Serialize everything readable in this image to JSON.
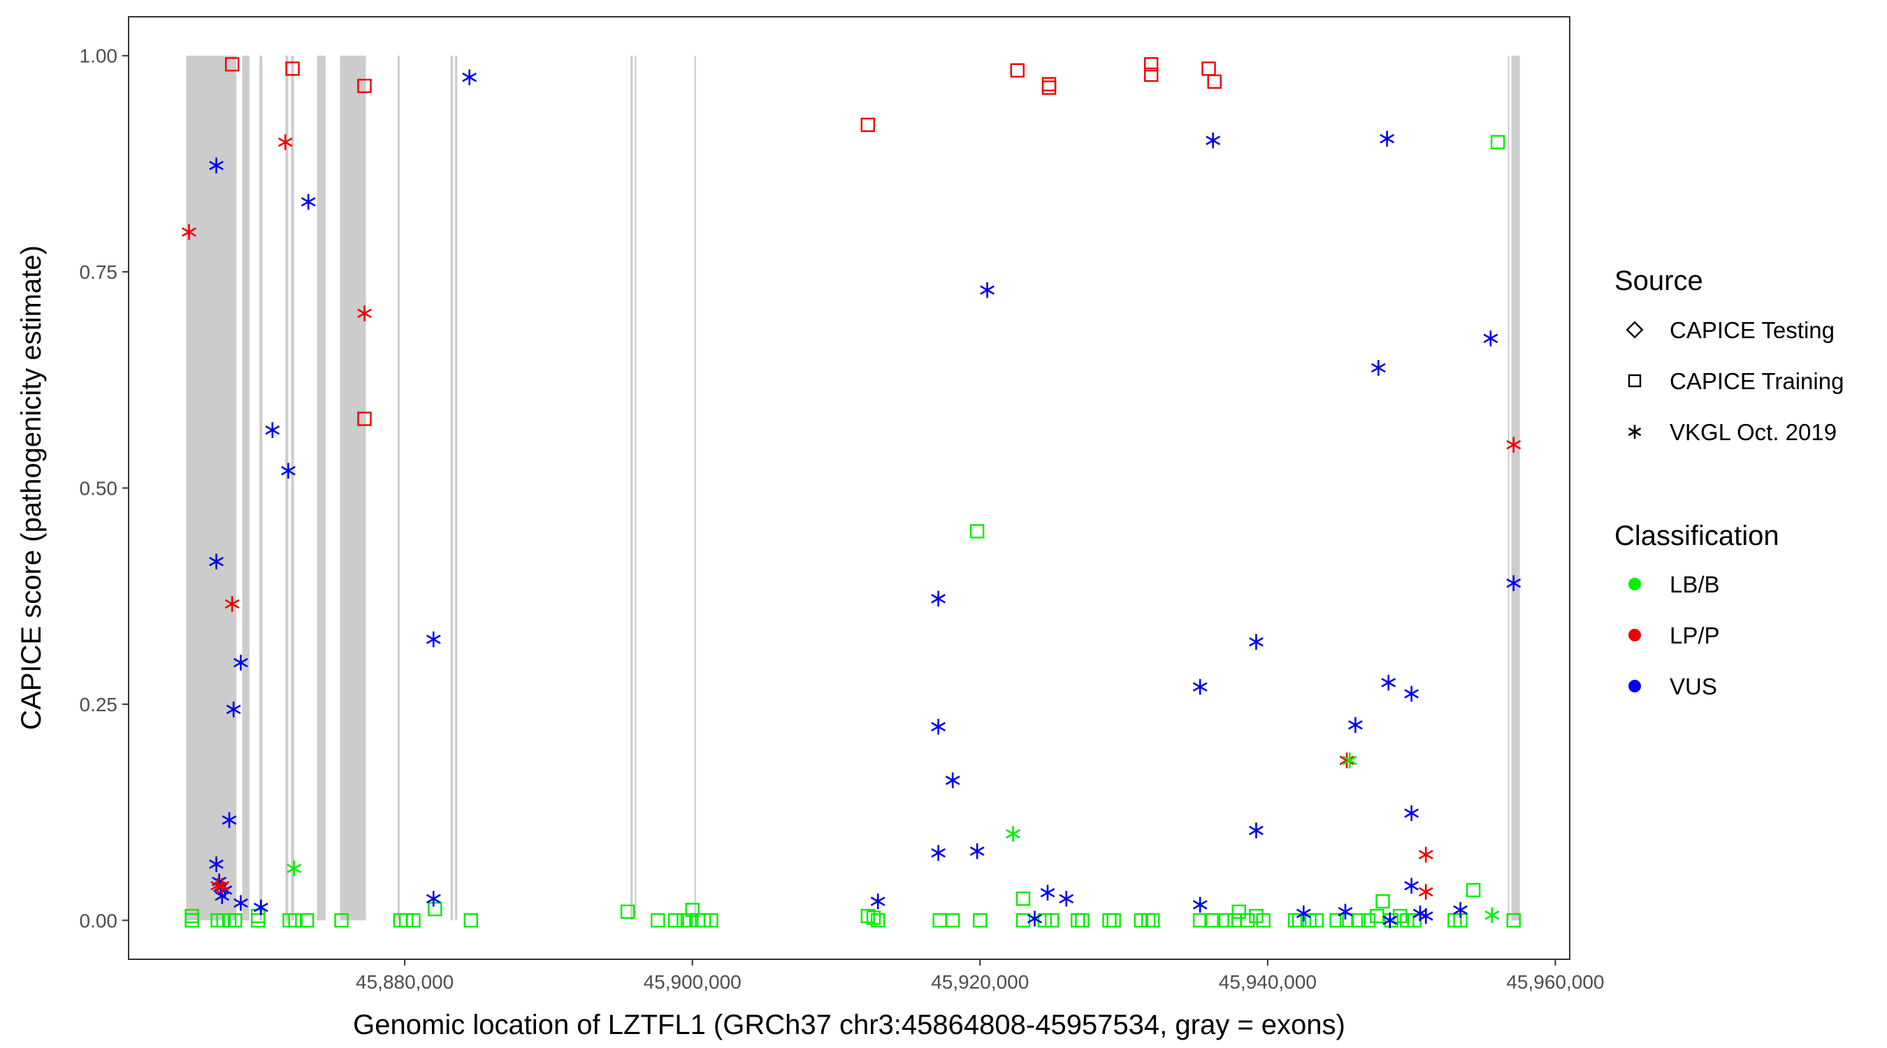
{
  "chart_data": {
    "type": "scatter",
    "title": "",
    "xlabel": "Genomic location of LZTFL1 (GRCh37 chr3:45864808-45957534, gray = exons)",
    "ylabel": "CAPICE score (pathogenicity estimate)",
    "xlim": [
      45860800,
      45961000
    ],
    "ylim": [
      -0.045,
      1.045
    ],
    "x_ticks": [
      45880000,
      45900000,
      45920000,
      45940000,
      45960000
    ],
    "x_tick_labels": [
      "45,880,000",
      "45,900,000",
      "45,920,000",
      "45,940,000",
      "45,960,000"
    ],
    "y_ticks": [
      0,
      0.25,
      0.5,
      0.75,
      1.0
    ],
    "y_tick_labels": [
      "0.00",
      "0.25",
      "0.50",
      "0.75",
      "1.00"
    ],
    "grid": false,
    "exons": [
      [
        45864808,
        45868300
      ],
      [
        45868700,
        45869200
      ],
      [
        45869900,
        45870100
      ],
      [
        45871700,
        45871900
      ],
      [
        45872100,
        45872300
      ],
      [
        45873900,
        45874500
      ],
      [
        45875500,
        45877300
      ],
      [
        45879500,
        45879650
      ],
      [
        45883200,
        45883350
      ],
      [
        45883500,
        45883650
      ],
      [
        45895700,
        45895850
      ],
      [
        45896000,
        45896100
      ],
      [
        45900150,
        45900250
      ],
      [
        45956700,
        45956800
      ],
      [
        45956950,
        45957534
      ]
    ],
    "legend": {
      "source_title": "Source",
      "source_items": [
        {
          "label": "CAPICE Testing",
          "shape": "diamond"
        },
        {
          "label": "CAPICE Training",
          "shape": "square"
        },
        {
          "label": "VKGL Oct. 2019",
          "shape": "asterisk"
        }
      ],
      "class_title": "Classification",
      "class_items": [
        {
          "label": "LB/B",
          "color": "#00ee00"
        },
        {
          "label": "LP/P",
          "color": "#ee0000"
        },
        {
          "label": "VUS",
          "color": "#0000ee"
        }
      ],
      "placement": "right"
    },
    "series": [
      {
        "name": "CAPICE Training LP/P",
        "shape": "square",
        "color": "#ee0000",
        "points": [
          [
            45868000,
            0.99
          ],
          [
            45872200,
            0.985
          ],
          [
            45877200,
            0.965
          ],
          [
            45877200,
            0.58
          ],
          [
            45912200,
            0.92
          ],
          [
            45922600,
            0.983
          ],
          [
            45924800,
            0.967
          ],
          [
            45924800,
            0.963
          ],
          [
            45931900,
            0.99
          ],
          [
            45931900,
            0.978
          ],
          [
            45935900,
            0.985
          ],
          [
            45936300,
            0.97
          ]
        ]
      },
      {
        "name": "CAPICE Training LB/B",
        "shape": "square",
        "color": "#00ee00",
        "points": [
          [
            45865200,
            0.005
          ],
          [
            45865200,
            0.0
          ],
          [
            45867000,
            0.0
          ],
          [
            45867400,
            0.0
          ],
          [
            45867800,
            0.0
          ],
          [
            45868200,
            0.0
          ],
          [
            45869800,
            0.005
          ],
          [
            45869800,
            0.0
          ],
          [
            45872000,
            0.0
          ],
          [
            45872400,
            0.0
          ],
          [
            45873200,
            0.0
          ],
          [
            45875600,
            0.0
          ],
          [
            45879700,
            0.0
          ],
          [
            45880100,
            0.0
          ],
          [
            45880600,
            0.0
          ],
          [
            45882100,
            0.013
          ],
          [
            45884600,
            0.0
          ],
          [
            45895500,
            0.01
          ],
          [
            45897600,
            0.0
          ],
          [
            45898800,
            0.0
          ],
          [
            45899400,
            0.0
          ],
          [
            45899800,
            0.0
          ],
          [
            45900000,
            0.012
          ],
          [
            45900400,
            0.0
          ],
          [
            45900800,
            0.0
          ],
          [
            45901300,
            0.0
          ],
          [
            45912200,
            0.005
          ],
          [
            45912600,
            0.003
          ],
          [
            45912900,
            0.0
          ],
          [
            45917200,
            0.0
          ],
          [
            45918100,
            0.0
          ],
          [
            45919800,
            0.45
          ],
          [
            45920000,
            0.0
          ],
          [
            45923000,
            0.025
          ],
          [
            45923000,
            0.0
          ],
          [
            45924500,
            0.0
          ],
          [
            45925000,
            0.0
          ],
          [
            45926800,
            0.0
          ],
          [
            45927100,
            0.0
          ],
          [
            45929000,
            0.0
          ],
          [
            45929300,
            0.0
          ],
          [
            45931200,
            0.0
          ],
          [
            45931700,
            0.0
          ],
          [
            45932000,
            0.0
          ],
          [
            45935300,
            0.0
          ],
          [
            45936100,
            0.0
          ],
          [
            45937100,
            0.0
          ],
          [
            45937700,
            0.0
          ],
          [
            45938000,
            0.01
          ],
          [
            45938600,
            0.0
          ],
          [
            45939200,
            0.005
          ],
          [
            45939700,
            0.0
          ],
          [
            45941900,
            0.0
          ],
          [
            45942200,
            0.0
          ],
          [
            45942900,
            0.0
          ],
          [
            45943400,
            0.0
          ],
          [
            45944800,
            0.0
          ],
          [
            45945500,
            0.0
          ],
          [
            45946300,
            0.0
          ],
          [
            45947000,
            0.0
          ],
          [
            45947600,
            0.005
          ],
          [
            45948000,
            0.022
          ],
          [
            45948600,
            0.0
          ],
          [
            45949200,
            0.005
          ],
          [
            45949700,
            0.0
          ],
          [
            45950200,
            0.0
          ],
          [
            45953000,
            0.0
          ],
          [
            45953400,
            0.0
          ],
          [
            45954300,
            0.035
          ],
          [
            45956000,
            0.9
          ],
          [
            45957100,
            0.0
          ]
        ]
      },
      {
        "name": "VKGL Oct. 2019 VUS",
        "shape": "asterisk",
        "color": "#0000ee",
        "points": [
          [
            45866900,
            0.873
          ],
          [
            45866900,
            0.415
          ],
          [
            45866900,
            0.065
          ],
          [
            45867100,
            0.045
          ],
          [
            45867200,
            0.038
          ],
          [
            45867300,
            0.028
          ],
          [
            45867500,
            0.035
          ],
          [
            45867800,
            0.116
          ],
          [
            45868100,
            0.244
          ],
          [
            45868600,
            0.298
          ],
          [
            45868600,
            0.02
          ],
          [
            45870000,
            0.015
          ],
          [
            45870800,
            0.567
          ],
          [
            45871900,
            0.52
          ],
          [
            45873300,
            0.831
          ],
          [
            45882000,
            0.325
          ],
          [
            45882000,
            0.025
          ],
          [
            45884500,
            0.975
          ],
          [
            45912900,
            0.022
          ],
          [
            45917100,
            0.372
          ],
          [
            45917100,
            0.224
          ],
          [
            45917100,
            0.078
          ],
          [
            45918100,
            0.162
          ],
          [
            45919800,
            0.08
          ],
          [
            45920500,
            0.729
          ],
          [
            45923800,
            0.002
          ],
          [
            45924700,
            0.032
          ],
          [
            45926000,
            0.025
          ],
          [
            45935300,
            0.27
          ],
          [
            45935300,
            0.018
          ],
          [
            45936200,
            0.902
          ],
          [
            45939200,
            0.322
          ],
          [
            45939200,
            0.104
          ],
          [
            45942500,
            0.008
          ],
          [
            45945400,
            0.01
          ],
          [
            45946100,
            0.226
          ],
          [
            45947700,
            0.639
          ],
          [
            45948300,
            0.904
          ],
          [
            45948400,
            0.275
          ],
          [
            45948500,
            0.0
          ],
          [
            45950000,
            0.262
          ],
          [
            45950000,
            0.124
          ],
          [
            45950000,
            0.04
          ],
          [
            45950600,
            0.008
          ],
          [
            45951000,
            0.005
          ],
          [
            45953400,
            0.012
          ],
          [
            45955500,
            0.673
          ],
          [
            45957100,
            0.39
          ]
        ]
      },
      {
        "name": "VKGL Oct. 2019 LP/P",
        "shape": "asterisk",
        "color": "#ee0000",
        "points": [
          [
            45865000,
            0.796
          ],
          [
            45867000,
            0.04
          ],
          [
            45867300,
            0.04
          ],
          [
            45868000,
            0.366
          ],
          [
            45871700,
            0.9
          ],
          [
            45877200,
            0.702
          ],
          [
            45945500,
            0.185
          ],
          [
            45951000,
            0.076
          ],
          [
            45951000,
            0.033
          ],
          [
            45957100,
            0.55
          ]
        ]
      },
      {
        "name": "VKGL Oct. 2019 LB/B",
        "shape": "asterisk",
        "color": "#00ee00",
        "points": [
          [
            45872300,
            0.06
          ],
          [
            45922300,
            0.1
          ],
          [
            45945700,
            0.185
          ],
          [
            45955600,
            0.006
          ]
        ]
      }
    ]
  }
}
